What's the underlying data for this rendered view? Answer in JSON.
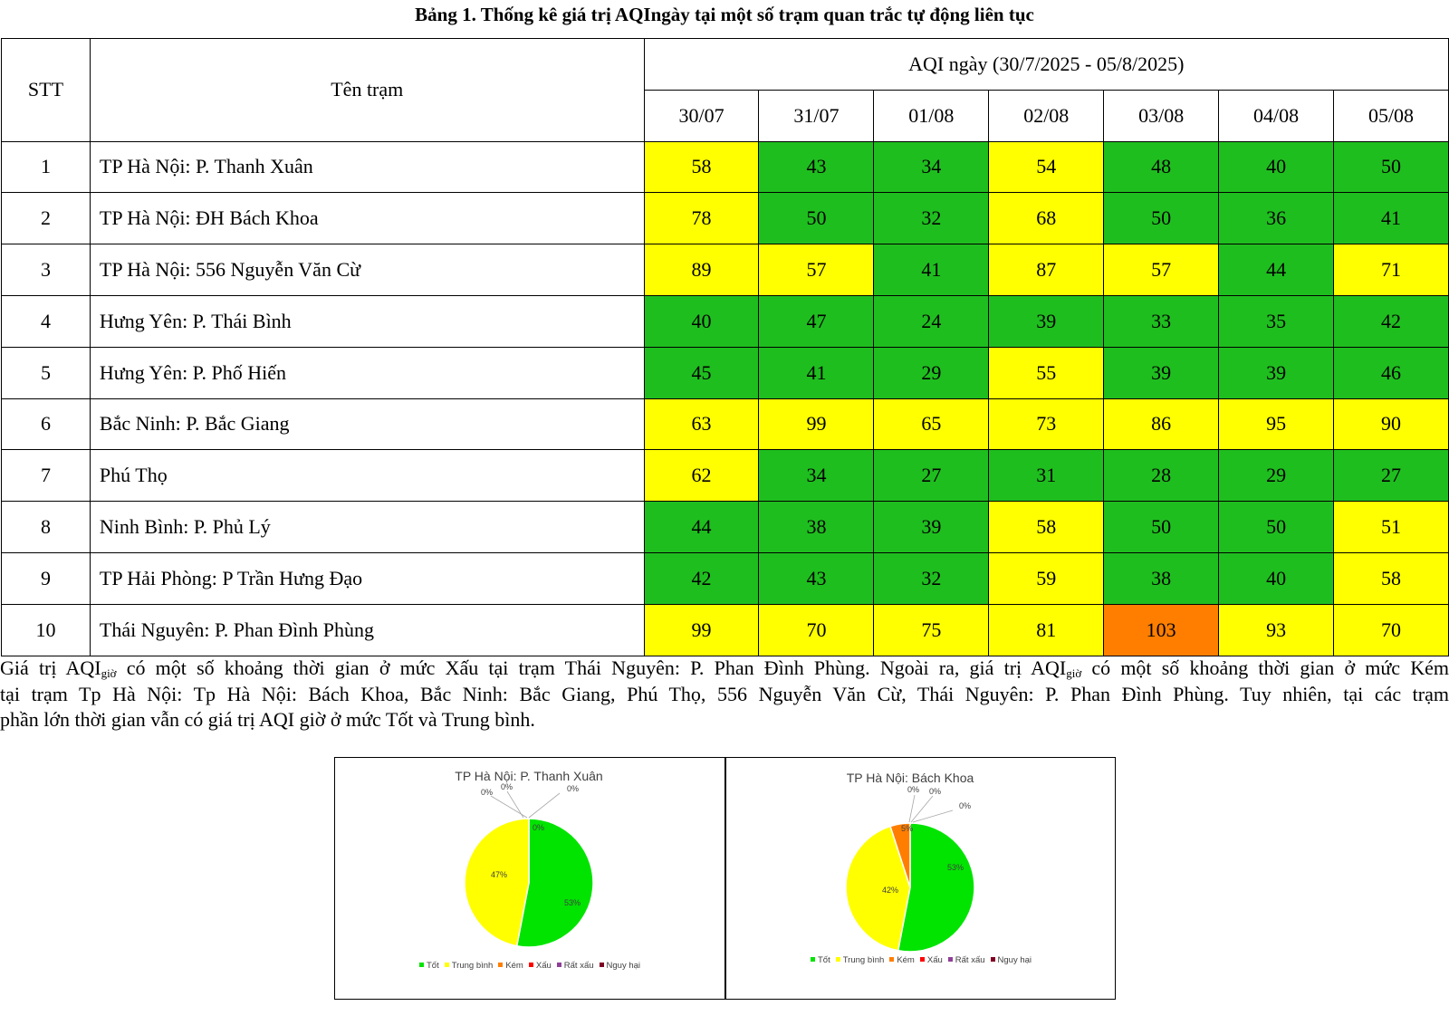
{
  "title": "Bảng 1. Thống kê giá trị AQIngày tại một số trạm quan trắc tự động liên tục",
  "table": {
    "col_stt": "STT",
    "col_name": "Tên trạm",
    "group_header": "AQI ngày (30/7/2025 - 05/8/2025)",
    "dates": [
      "30/07",
      "31/07",
      "01/08",
      "02/08",
      "03/08",
      "04/08",
      "05/08"
    ],
    "colors": {
      "good": "#1fbe1f",
      "moderate": "#ffff00",
      "poor": "#ff7e00"
    },
    "rows": [
      {
        "stt": "1",
        "name": "TP Hà Nội: P. Thanh Xuân",
        "values": [
          "58",
          "43",
          "34",
          "54",
          "48",
          "40",
          "50"
        ]
      },
      {
        "stt": "2",
        "name": "TP Hà Nội: ĐH Bách Khoa",
        "values": [
          "78",
          "50",
          "32",
          "68",
          "50",
          "36",
          "41"
        ]
      },
      {
        "stt": "3",
        "name": "TP Hà Nội: 556 Nguyễn Văn Cừ",
        "values": [
          "89",
          "57",
          "41",
          "87",
          "57",
          "44",
          "71"
        ]
      },
      {
        "stt": "4",
        "name": "Hưng Yên: P. Thái Bình",
        "values": [
          "40",
          "47",
          "24",
          "39",
          "33",
          "35",
          "42"
        ]
      },
      {
        "stt": "5",
        "name": "Hưng Yên: P. Phố Hiến",
        "values": [
          "45",
          "41",
          "29",
          "55",
          "39",
          "39",
          "46"
        ]
      },
      {
        "stt": "6",
        "name": "Bắc Ninh: P. Bắc Giang",
        "values": [
          "63",
          "99",
          "65",
          "73",
          "86",
          "95",
          "90"
        ]
      },
      {
        "stt": "7",
        "name": "Phú Thọ",
        "values": [
          "62",
          "34",
          "27",
          "31",
          "28",
          "29",
          "27"
        ]
      },
      {
        "stt": "8",
        "name": "Ninh Bình: P. Phủ Lý",
        "values": [
          "44",
          "38",
          "39",
          "58",
          "50",
          "50",
          "51"
        ]
      },
      {
        "stt": "9",
        "name": "TP Hải Phòng: P Trần Hưng Đạo",
        "values": [
          "42",
          "43",
          "32",
          "59",
          "38",
          "40",
          "58"
        ]
      },
      {
        "stt": "10",
        "name": "Thái Nguyên: P. Phan Đình Phùng",
        "values": [
          "99",
          "70",
          "75",
          "81",
          "103",
          "93",
          "70"
        ]
      }
    ]
  },
  "paragraph": {
    "l1a": "Giá trị AQI",
    "l1sub1": "giờ",
    "l1b": " có một số khoảng thời gian ở mức Xấu tại trạm Thái Nguyên: P. Phan Đình Phùng. Ngoài ra, giá trị AQI",
    "l1sub2": "giờ",
    "l1c": " có một số khoảng thời gian ở mức Kém",
    "l2": "tại trạm Tp Hà Nội: Tp Hà Nội: Bách Khoa, Bắc Ninh: Bắc Giang, Phú Thọ, 556 Nguyễn Văn Cừ, Thái Nguyên: P. Phan Đình Phùng. Tuy nhiên, tại các trạm",
    "l3": "phần lớn thời gian vẫn có giá trị AQI giờ ở mức Tốt và Trung bình."
  },
  "chart_data": [
    {
      "type": "pie",
      "title": "TP Hà Nội: P. Thanh Xuân",
      "categories": [
        "Tốt",
        "Trung bình",
        "Kém",
        "Xấu",
        "Rất xấu",
        "Nguy hại"
      ],
      "values": [
        53,
        47,
        0,
        0,
        0,
        0
      ],
      "labels": [
        "53%",
        "47%",
        "0%",
        "0%",
        "0%",
        "0%"
      ],
      "colors": [
        "#00e400",
        "#ffff00",
        "#ff7e00",
        "#ff0000",
        "#8f3f97",
        "#7e0023"
      ],
      "legend": "bottom"
    },
    {
      "type": "pie",
      "title": "TP Hà Nội: Bách Khoa",
      "categories": [
        "Tốt",
        "Trung bình",
        "Kém",
        "Xấu",
        "Rất xấu",
        "Nguy hại"
      ],
      "values": [
        53,
        42,
        5,
        0,
        0,
        0
      ],
      "labels": [
        "53%",
        "42%",
        "5%",
        "0%",
        "0%",
        "0%"
      ],
      "colors": [
        "#00e400",
        "#ffff00",
        "#ff7e00",
        "#ff0000",
        "#8f3f97",
        "#7e0023"
      ],
      "legend": "bottom"
    }
  ]
}
